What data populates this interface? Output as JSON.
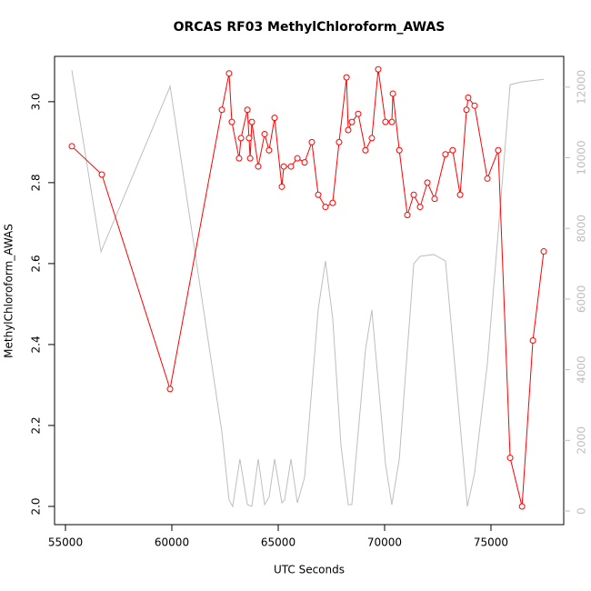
{
  "chart_data": {
    "type": "line",
    "title": "ORCAS RF03 MethylChloroform_AWAS",
    "xlabel": "UTC Seconds",
    "ylabel": "MethylChloroform_AWAS",
    "xlim": [
      54487,
      78419
    ],
    "ylim": [
      1.955,
      3.112
    ],
    "y2lim": [
      -386,
      12870
    ],
    "xticks": [
      55000,
      60000,
      65000,
      70000,
      75000
    ],
    "yticks": [
      {
        "value": 2,
        "label": "2.0"
      },
      2.2,
      2.4,
      2.6,
      2.8,
      {
        "value": 3,
        "label": "3.0"
      }
    ],
    "y2ticks": [
      0,
      2000,
      4000,
      6000,
      8000,
      10000,
      12000
    ],
    "y2tick_color": "#bebebe",
    "series": [
      {
        "color": "#bebebe",
        "axis": "y2",
        "markers": false,
        "x": [
          55300,
          56670,
          59920,
          62350,
          62690,
          62860,
          63200,
          63550,
          63760,
          64060,
          64360,
          64570,
          64830,
          65170,
          65300,
          65600,
          65900,
          66240,
          66880,
          67220,
          67560,
          67950,
          68290,
          68460,
          69100,
          69400,
          69700,
          70040,
          70340,
          70690,
          71370,
          71670,
          72310,
          72860,
          73200,
          73890,
          74230,
          74830,
          75340,
          75900,
          76460,
          77480
        ],
        "values": [
          12480,
          7340,
          12020,
          2240,
          310,
          130,
          1470,
          180,
          130,
          1470,
          180,
          390,
          1470,
          230,
          310,
          1470,
          230,
          950,
          5710,
          7080,
          5460,
          1850,
          180,
          180,
          4560,
          5690,
          3660,
          1340,
          180,
          1470,
          7000,
          7210,
          7260,
          7080,
          4810,
          130,
          1080,
          4170,
          7900,
          12070,
          12150,
          12220
        ]
      },
      {
        "color": "#ff0000",
        "axis": "y",
        "markers": true,
        "x": [
          55300,
          56710,
          59915,
          62350,
          62690,
          62820,
          63160,
          63250,
          63550,
          63630,
          63680,
          63760,
          64060,
          64360,
          64570,
          64830,
          65170,
          65260,
          65600,
          65900,
          66240,
          66580,
          66880,
          67220,
          67560,
          67860,
          68210,
          68290,
          68460,
          68760,
          69100,
          69400,
          69700,
          70040,
          70340,
          70390,
          70690,
          71070,
          71370,
          71670,
          72010,
          72350,
          72860,
          73200,
          73550,
          73850,
          73930,
          74230,
          74830,
          75340,
          75900,
          76460,
          76970,
          77480
        ],
        "values": [
          2.89,
          2.82,
          2.29,
          2.98,
          3.07,
          2.95,
          2.86,
          2.91,
          2.98,
          2.91,
          2.86,
          2.95,
          2.84,
          2.92,
          2.88,
          2.96,
          2.79,
          2.84,
          2.84,
          2.86,
          2.85,
          2.9,
          2.77,
          2.74,
          2.75,
          2.9,
          3.06,
          2.93,
          2.95,
          2.97,
          2.88,
          2.91,
          3.08,
          2.95,
          2.95,
          3.02,
          2.88,
          2.72,
          2.77,
          2.74,
          2.8,
          2.76,
          2.87,
          2.88,
          2.77,
          2.98,
          3.01,
          2.99,
          2.81,
          2.88,
          2.12,
          2.0,
          2.41,
          2.63
        ]
      }
    ]
  }
}
